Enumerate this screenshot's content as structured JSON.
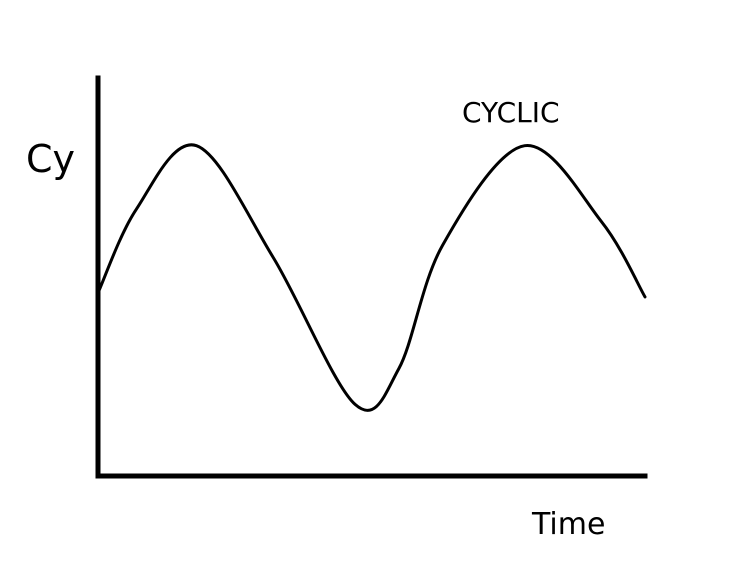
{
  "chart_data": {
    "type": "line",
    "title": "CYCLIC",
    "xlabel": "Time",
    "ylabel": "Cy",
    "grid": false,
    "legend": "none",
    "xlim": [
      0,
      1
    ],
    "ylim": [
      0,
      1
    ],
    "series": [
      {
        "color": "#000000",
        "x": [
          0,
          0.07,
          0.18,
          0.32,
          0.47,
          0.55,
          0.63,
          0.78,
          0.92,
          1.0
        ],
        "y": [
          0.46,
          0.67,
          0.83,
          0.55,
          0.18,
          0.27,
          0.58,
          0.83,
          0.64,
          0.45
        ]
      }
    ]
  }
}
